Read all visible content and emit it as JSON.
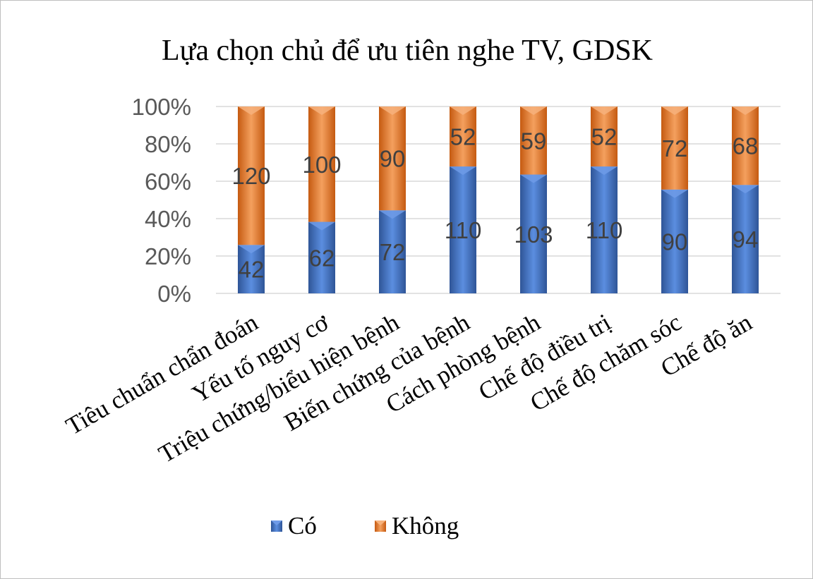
{
  "chart_data": {
    "type": "bar",
    "stacked": "percent",
    "title": "Lựa chọn chủ để ưu tiên nghe TV, GDSK",
    "categories": [
      "Tiêu chuẩn chẩn đoán",
      "Yếu tố nguy cơ",
      "Triệu chứng/biểu hiện bệnh",
      "Biến chứng của bệnh",
      "Cách phòng bệnh",
      "Chế độ điều trị",
      "Chế độ chăm sóc",
      "Chế độ ăn"
    ],
    "series": [
      {
        "name": "Có",
        "values": [
          42,
          62,
          72,
          110,
          103,
          110,
          90,
          94
        ],
        "color": "#4472c4"
      },
      {
        "name": "Không",
        "values": [
          120,
          100,
          90,
          52,
          59,
          52,
          72,
          68
        ],
        "color": "#ed7d31"
      }
    ],
    "yticks": [
      "0%",
      "20%",
      "40%",
      "60%",
      "80%",
      "100%"
    ],
    "ylim": [
      0,
      100
    ],
    "grid": true,
    "legend": "bottom"
  }
}
